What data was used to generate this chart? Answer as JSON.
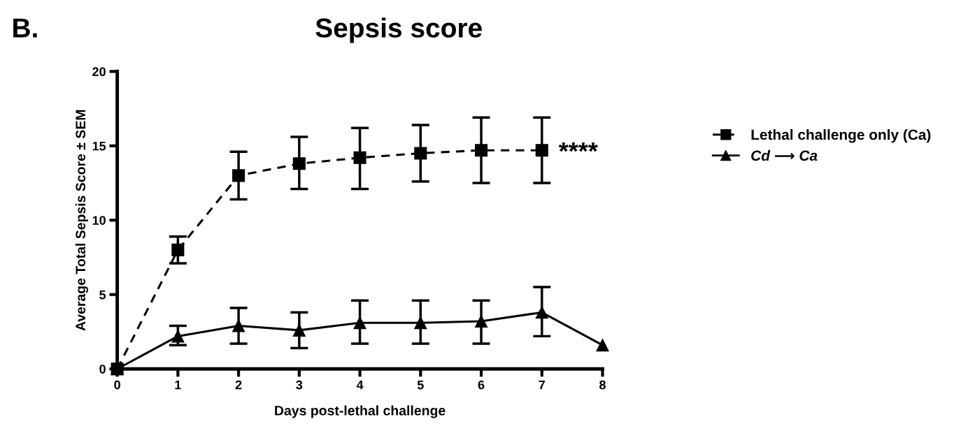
{
  "chart_data": {
    "type": "line",
    "title": "Sepsis score",
    "xlabel": "Days post-lethal challenge",
    "ylabel": "Average Total Sepsis Score ± SEM",
    "annotations": [
      "B.",
      "****"
    ],
    "xlim": [
      0,
      8
    ],
    "xticks": [
      0,
      1,
      2,
      3,
      4,
      5,
      6,
      7,
      8
    ],
    "ylim": [
      0,
      20
    ],
    "yticks": [
      0,
      5,
      10,
      15,
      20
    ],
    "grid": false,
    "legend": "top right",
    "series": [
      {
        "name": "Lethal challenge only (Ca)",
        "color": "#000000",
        "marker": "square",
        "line_style": "dashed",
        "x": [
          0,
          1,
          2,
          3,
          4,
          5,
          6,
          7
        ],
        "values": [
          0,
          8.0,
          13.0,
          13.8,
          14.2,
          14.5,
          14.7,
          14.7
        ],
        "errors": [
          null,
          [
            7.1,
            8.9
          ],
          [
            11.4,
            14.6
          ],
          [
            12.1,
            15.6
          ],
          [
            12.1,
            16.2
          ],
          [
            12.6,
            16.4
          ],
          [
            12.5,
            16.9
          ],
          [
            12.5,
            16.9
          ]
        ]
      },
      {
        "name": "Cd ⟶ Ca",
        "color": "#000000",
        "marker": "triangle",
        "line_style": "solid",
        "x": [
          0,
          1,
          2,
          3,
          4,
          5,
          6,
          7,
          8
        ],
        "values": [
          0,
          2.2,
          2.9,
          2.6,
          3.1,
          3.1,
          3.2,
          3.8,
          1.6
        ],
        "errors": [
          null,
          [
            1.6,
            2.9
          ],
          [
            1.7,
            4.1
          ],
          [
            1.4,
            3.8
          ],
          [
            1.7,
            4.6
          ],
          [
            1.7,
            4.6
          ],
          [
            1.7,
            4.6
          ],
          [
            2.2,
            5.5
          ],
          null
        ]
      }
    ]
  }
}
